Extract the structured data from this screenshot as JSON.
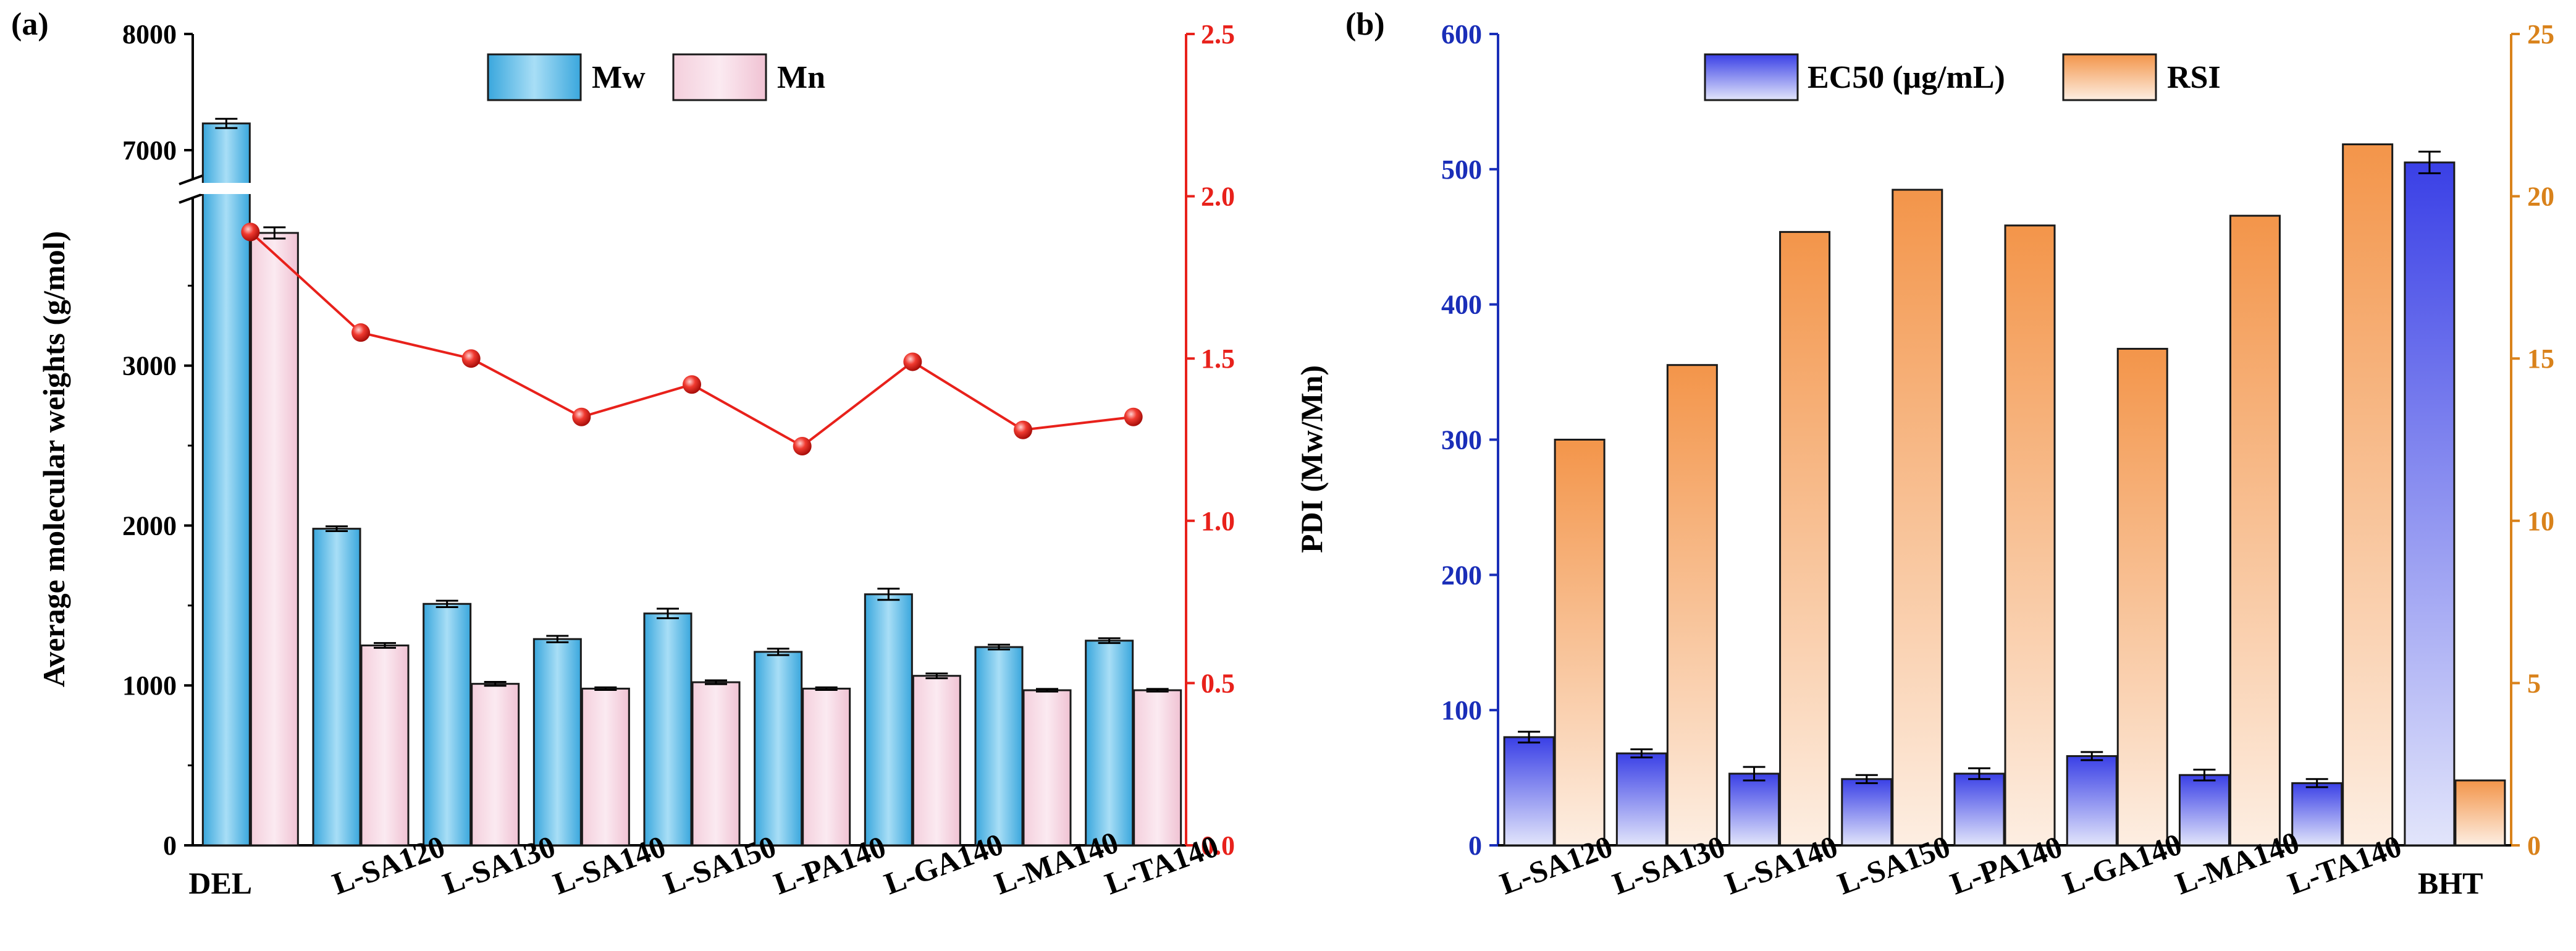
{
  "colors": {
    "mw": "#4cb6e6",
    "mn": "#f2c6d6",
    "pdi": "#e8211b",
    "ec50": "#4146e6",
    "rsi": "#f39a55",
    "axis_blue": "#1a2eb8",
    "axis_orange": "#d9821b",
    "axis_red": "#e8211b"
  },
  "chart_data": [
    {
      "panel_label": "(a)",
      "type": "bar",
      "categories": [
        "DEL",
        "L-SA120",
        "L-SA130",
        "L-SA140",
        "L-SA150",
        "L-PA140",
        "L-GA140",
        "L-MA140",
        "L-TA140"
      ],
      "ylabel": "Average molecular weights (g/mol)",
      "y2label": "PDI (Mw/Mn)",
      "ylim_lower": [
        0,
        4050
      ],
      "ylim_upper": [
        6750,
        8000
      ],
      "axis_break": [
        4050,
        6750
      ],
      "yticks": [
        0,
        1000,
        2000,
        3000,
        7000,
        8000
      ],
      "y2lim": [
        0.0,
        2.5
      ],
      "y2ticks": [
        "0.0",
        "0.5",
        "1.0",
        "1.5",
        "2.0",
        "2.5"
      ],
      "legend": [
        "Mw",
        "Mn"
      ],
      "series": [
        {
          "name": "Mw",
          "values": [
            7230,
            1980,
            1510,
            1290,
            1450,
            1210,
            1570,
            1240,
            1280
          ],
          "errors": [
            40,
            15,
            20,
            20,
            30,
            20,
            35,
            15,
            15
          ]
        },
        {
          "name": "Mn",
          "values": [
            3830,
            1250,
            1010,
            980,
            1020,
            980,
            1060,
            970,
            970
          ],
          "errors": [
            35,
            15,
            12,
            8,
            12,
            8,
            15,
            8,
            8
          ]
        },
        {
          "name": "PDI",
          "axis": "right",
          "values": [
            1.89,
            1.58,
            1.5,
            1.32,
            1.42,
            1.23,
            1.49,
            1.28,
            1.32
          ]
        }
      ]
    },
    {
      "panel_label": "(b)",
      "type": "bar",
      "categories": [
        "L-SA120",
        "L-SA130",
        "L-SA140",
        "L-SA150",
        "L-PA140",
        "L-GA140",
        "L-MA140",
        "L-TA140",
        "BHT"
      ],
      "ylim": [
        0,
        600
      ],
      "yticks": [
        "0",
        "100",
        "200",
        "300",
        "400",
        "500",
        "600"
      ],
      "y2lim": [
        0,
        25
      ],
      "y2ticks": [
        "0",
        "5",
        "10",
        "15",
        "20",
        "25"
      ],
      "legend": [
        "EC50 (μg/mL)",
        "RSI"
      ],
      "series": [
        {
          "name": "EC50 (μg/mL)",
          "axis": "left",
          "values": [
            80,
            68,
            53,
            49,
            53,
            66,
            52,
            46,
            505
          ],
          "errors": [
            4,
            3,
            5,
            3,
            4,
            3,
            4,
            3,
            8
          ]
        },
        {
          "name": "RSI",
          "axis": "right",
          "values": [
            12.5,
            14.8,
            18.9,
            20.2,
            19.1,
            15.3,
            19.4,
            21.6,
            2.0
          ]
        }
      ]
    }
  ]
}
